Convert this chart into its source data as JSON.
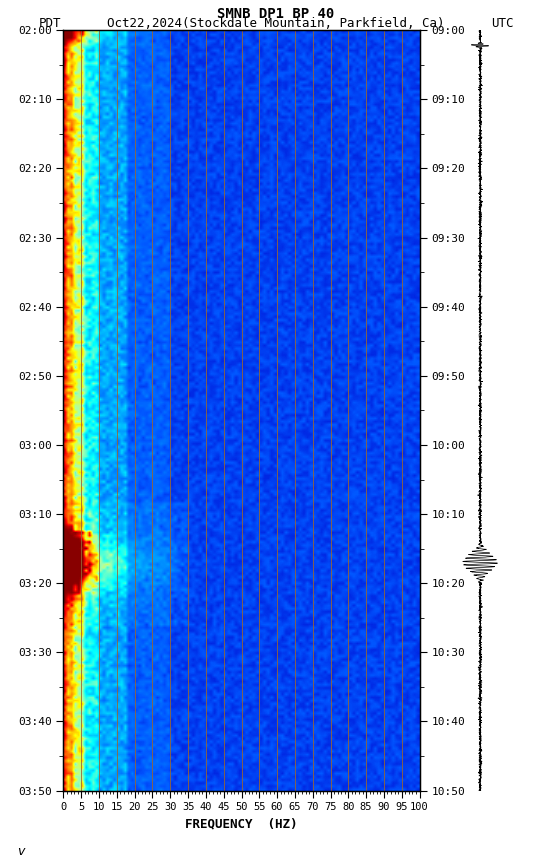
{
  "title_line1": "SMNB DP1 BP 40",
  "title_line2_left": "PDT",
  "title_line2_mid": "Oct22,2024(Stockdale Mountain, Parkfield, Ca)",
  "title_line2_right": "UTC",
  "xlabel": "FREQUENCY  (HZ)",
  "freq_ticks": [
    0,
    5,
    10,
    15,
    20,
    25,
    30,
    35,
    40,
    45,
    50,
    55,
    60,
    65,
    70,
    75,
    80,
    85,
    90,
    95,
    100
  ],
  "time_labels_left": [
    "02:00",
    "02:10",
    "02:20",
    "02:30",
    "02:40",
    "02:50",
    "03:00",
    "03:10",
    "03:20",
    "03:30",
    "03:40",
    "03:50"
  ],
  "time_labels_right": [
    "09:00",
    "09:10",
    "09:20",
    "09:30",
    "09:40",
    "09:50",
    "10:00",
    "10:10",
    "10:20",
    "10:30",
    "10:40",
    "10:50"
  ],
  "n_time": 240,
  "n_freq": 100,
  "vertical_line_freqs": [
    5,
    10,
    15,
    20,
    25,
    30,
    35,
    40,
    45,
    50,
    55,
    60,
    65,
    70,
    75,
    80,
    85,
    90,
    95
  ],
  "bg_color": "#ffffff",
  "spec_bg": "#0000AA",
  "colormap_nodes": [
    [
      0.0,
      "#000066"
    ],
    [
      0.12,
      "#0000CC"
    ],
    [
      0.25,
      "#0055FF"
    ],
    [
      0.38,
      "#00AAFF"
    ],
    [
      0.5,
      "#00FFFF"
    ],
    [
      0.63,
      "#AAFFAA"
    ],
    [
      0.72,
      "#FFFF00"
    ],
    [
      0.82,
      "#FF8800"
    ],
    [
      0.91,
      "#FF0000"
    ],
    [
      1.0,
      "#880000"
    ]
  ]
}
